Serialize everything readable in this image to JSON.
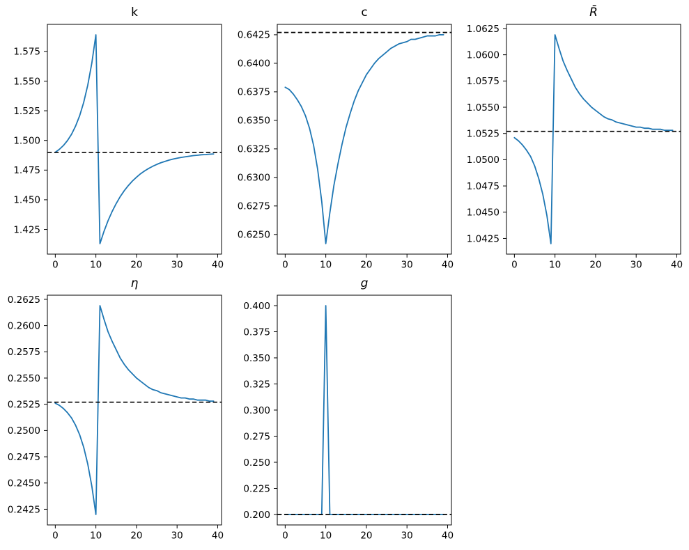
{
  "figure": {
    "background": "#ffffff",
    "line_color": "#1f77b4",
    "dash_color": "#000000",
    "axis_color": "#000000",
    "tick_label_color": "#000000"
  },
  "chart_data": [
    {
      "id": "k",
      "type": "line",
      "title": "k",
      "title_italic": false,
      "xlabel": "",
      "ylabel": "",
      "xlim": [
        -1.95,
        40.95
      ],
      "ylim": [
        1.4042,
        1.5978
      ],
      "xticks": [
        0,
        10,
        20,
        30,
        40
      ],
      "xtick_labels": [
        "0",
        "10",
        "20",
        "30",
        "40"
      ],
      "yticks": [
        1.425,
        1.45,
        1.475,
        1.5,
        1.525,
        1.55,
        1.575
      ],
      "ytick_labels": [
        "1.425",
        "1.450",
        "1.475",
        "1.500",
        "1.525",
        "1.550",
        "1.575"
      ],
      "steady_state": 1.4899,
      "x": [
        0,
        1,
        2,
        3,
        4,
        5,
        6,
        7,
        8,
        9,
        10,
        11,
        12,
        13,
        14,
        15,
        16,
        17,
        18,
        19,
        20,
        21,
        22,
        23,
        24,
        25,
        26,
        27,
        28,
        29,
        30,
        31,
        32,
        33,
        34,
        35,
        36,
        37,
        38,
        39
      ],
      "y": [
        1.49,
        1.4925,
        1.4957,
        1.4999,
        1.5052,
        1.5121,
        1.5208,
        1.5321,
        1.5466,
        1.5652,
        1.589,
        1.413,
        1.4234,
        1.4324,
        1.4401,
        1.4468,
        1.4527,
        1.4577,
        1.462,
        1.4658,
        1.469,
        1.4719,
        1.4743,
        1.4764,
        1.4782,
        1.4798,
        1.4812,
        1.4823,
        1.4834,
        1.4843,
        1.485,
        1.4857,
        1.4862,
        1.4867,
        1.4872,
        1.4875,
        1.4879,
        1.4881,
        1.4884,
        1.4886
      ]
    },
    {
      "id": "c",
      "type": "line",
      "title": "c",
      "title_italic": false,
      "xlabel": "",
      "ylabel": "",
      "xlim": [
        -1.95,
        40.95
      ],
      "ylim": [
        0.62328,
        0.64341
      ],
      "xticks": [
        0,
        10,
        20,
        30,
        40
      ],
      "xtick_labels": [
        "0",
        "10",
        "20",
        "30",
        "40"
      ],
      "yticks": [
        0.625,
        0.6275,
        0.63,
        0.6325,
        0.635,
        0.6375,
        0.64,
        0.6425
      ],
      "ytick_labels": [
        "0.6250",
        "0.6275",
        "0.6300",
        "0.6325",
        "0.6350",
        "0.6375",
        "0.6400",
        "0.6425"
      ],
      "steady_state": 0.6427,
      "x": [
        0,
        1,
        2,
        3,
        4,
        5,
        6,
        7,
        8,
        9,
        10,
        11,
        12,
        13,
        14,
        15,
        16,
        17,
        18,
        19,
        20,
        21,
        22,
        23,
        24,
        25,
        26,
        27,
        28,
        29,
        30,
        31,
        32,
        33,
        34,
        35,
        36,
        37,
        38,
        39
      ],
      "y": [
        0.6379,
        0.6377,
        0.6373,
        0.6368,
        0.6362,
        0.6354,
        0.6343,
        0.6328,
        0.6307,
        0.6279,
        0.6242,
        0.6269,
        0.6293,
        0.6312,
        0.6329,
        0.6344,
        0.6356,
        0.6367,
        0.6376,
        0.6383,
        0.639,
        0.6395,
        0.64,
        0.6404,
        0.6407,
        0.641,
        0.6413,
        0.6415,
        0.6417,
        0.6418,
        0.6419,
        0.6421,
        0.6421,
        0.6422,
        0.6423,
        0.6424,
        0.6424,
        0.6424,
        0.6425,
        0.6425
      ]
    },
    {
      "id": "R_bar",
      "type": "line",
      "title": "R̄",
      "title_italic": true,
      "xlabel": "",
      "ylabel": "",
      "xlim": [
        -1.95,
        40.95
      ],
      "ylim": [
        1.041005,
        1.062895
      ],
      "xticks": [
        0,
        10,
        20,
        30,
        40
      ],
      "xtick_labels": [
        "0",
        "10",
        "20",
        "30",
        "40"
      ],
      "yticks": [
        1.0425,
        1.045,
        1.0475,
        1.05,
        1.0525,
        1.055,
        1.0575,
        1.06,
        1.0625
      ],
      "ytick_labels": [
        "1.0425",
        "1.0450",
        "1.0475",
        "1.0500",
        "1.0525",
        "1.0550",
        "1.0575",
        "1.0600",
        "1.0625"
      ],
      "steady_state": 1.0527,
      "x": [
        0,
        1,
        2,
        3,
        4,
        5,
        6,
        7,
        8,
        9,
        10,
        11,
        12,
        13,
        14,
        15,
        16,
        17,
        18,
        19,
        20,
        21,
        22,
        23,
        24,
        25,
        26,
        27,
        28,
        29,
        30,
        31,
        32,
        33,
        34,
        35,
        36,
        37,
        38,
        39
      ],
      "y": [
        1.0521,
        1.0518,
        1.0514,
        1.0509,
        1.0503,
        1.0494,
        1.0482,
        1.0467,
        1.0447,
        1.042,
        1.0619,
        1.0606,
        1.0594,
        1.0585,
        1.0577,
        1.0569,
        1.0563,
        1.0558,
        1.0554,
        1.055,
        1.0547,
        1.0544,
        1.0541,
        1.0539,
        1.0538,
        1.0536,
        1.0535,
        1.0534,
        1.0533,
        1.0532,
        1.0531,
        1.0531,
        1.053,
        1.053,
        1.0529,
        1.0529,
        1.0529,
        1.0528,
        1.0528,
        1.0528
      ]
    },
    {
      "id": "eta",
      "type": "line",
      "title": "η",
      "title_italic": true,
      "xlabel": "",
      "ylabel": "",
      "xlim": [
        -1.95,
        40.95
      ],
      "ylim": [
        0.241005,
        0.262895
      ],
      "xticks": [
        0,
        10,
        20,
        30,
        40
      ],
      "xtick_labels": [
        "0",
        "10",
        "20",
        "30",
        "40"
      ],
      "yticks": [
        0.2425,
        0.245,
        0.2475,
        0.25,
        0.2525,
        0.255,
        0.2575,
        0.26,
        0.2625
      ],
      "ytick_labels": [
        "0.2425",
        "0.2450",
        "0.2475",
        "0.2500",
        "0.2525",
        "0.2550",
        "0.2575",
        "0.2600",
        "0.2625"
      ],
      "steady_state": 0.2527,
      "x": [
        0,
        1,
        2,
        3,
        4,
        5,
        6,
        7,
        8,
        9,
        10,
        11,
        12,
        13,
        14,
        15,
        16,
        17,
        18,
        19,
        20,
        21,
        22,
        23,
        24,
        25,
        26,
        27,
        28,
        29,
        30,
        31,
        32,
        33,
        34,
        35,
        36,
        37,
        38,
        39
      ],
      "y": [
        0.2526,
        0.2524,
        0.2521,
        0.2517,
        0.2512,
        0.2505,
        0.2496,
        0.2484,
        0.2468,
        0.2447,
        0.242,
        0.2619,
        0.2606,
        0.2594,
        0.2585,
        0.2577,
        0.2569,
        0.2563,
        0.2558,
        0.2554,
        0.255,
        0.2547,
        0.2544,
        0.2541,
        0.2539,
        0.2538,
        0.2536,
        0.2535,
        0.2534,
        0.2533,
        0.2532,
        0.2531,
        0.2531,
        0.253,
        0.253,
        0.2529,
        0.2529,
        0.2529,
        0.2528,
        0.2528
      ]
    },
    {
      "id": "g",
      "type": "line",
      "title": "g",
      "title_italic": true,
      "xlabel": "",
      "ylabel": "",
      "xlim": [
        -1.95,
        40.95
      ],
      "ylim": [
        0.19,
        0.41
      ],
      "xticks": [
        0,
        10,
        20,
        30,
        40
      ],
      "xtick_labels": [
        "0",
        "10",
        "20",
        "30",
        "40"
      ],
      "yticks": [
        0.2,
        0.225,
        0.25,
        0.275,
        0.3,
        0.325,
        0.35,
        0.375,
        0.4
      ],
      "ytick_labels": [
        "0.200",
        "0.225",
        "0.250",
        "0.275",
        "0.300",
        "0.325",
        "0.350",
        "0.375",
        "0.400"
      ],
      "steady_state": 0.2,
      "x": [
        0,
        1,
        2,
        3,
        4,
        5,
        6,
        7,
        8,
        9,
        10,
        11,
        12,
        13,
        14,
        15,
        16,
        17,
        18,
        19,
        20,
        21,
        22,
        23,
        24,
        25,
        26,
        27,
        28,
        29,
        30,
        31,
        32,
        33,
        34,
        35,
        36,
        37,
        38,
        39
      ],
      "y": [
        0.2,
        0.2,
        0.2,
        0.2,
        0.2,
        0.2,
        0.2,
        0.2,
        0.2,
        0.2,
        0.4,
        0.2,
        0.2,
        0.2,
        0.2,
        0.2,
        0.2,
        0.2,
        0.2,
        0.2,
        0.2,
        0.2,
        0.2,
        0.2,
        0.2,
        0.2,
        0.2,
        0.2,
        0.2,
        0.2,
        0.2,
        0.2,
        0.2,
        0.2,
        0.2,
        0.2,
        0.2,
        0.2,
        0.2,
        0.2
      ]
    }
  ]
}
